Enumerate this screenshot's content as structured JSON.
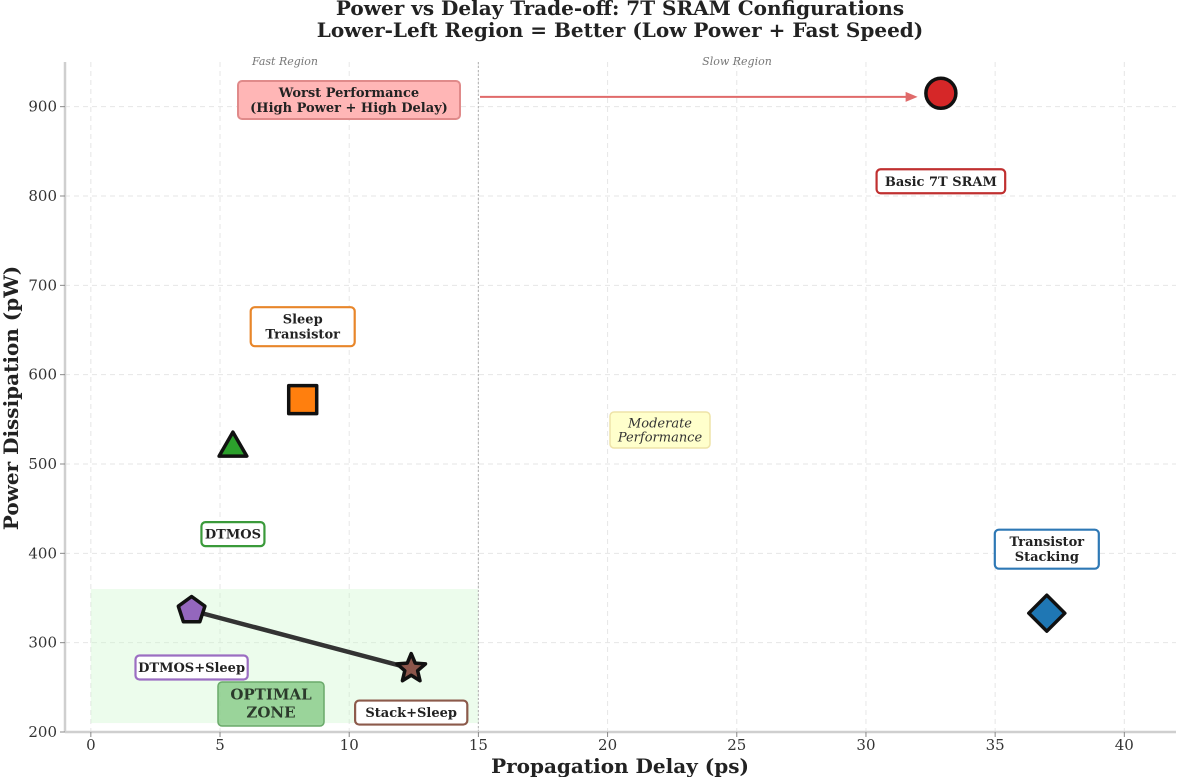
{
  "chart_data": {
    "type": "scatter",
    "title": "Power vs Delay Trade-off: 7T SRAM Configurations",
    "subtitle": "Lower-Left Region = Better (Low Power + Fast Speed)",
    "xlabel": "Propagation Delay (ps)",
    "ylabel": "Power Dissipation (pW)",
    "xlim": [
      -1,
      42
    ],
    "ylim": [
      200,
      950
    ],
    "xticks": [
      0,
      5,
      10,
      15,
      20,
      25,
      30,
      35,
      40
    ],
    "yticks": [
      200,
      300,
      400,
      500,
      600,
      700,
      800,
      900
    ],
    "grid": true,
    "divider_x": 15,
    "regions": {
      "fast": "Fast Region",
      "slow": "Slow Region"
    },
    "optimal_zone": {
      "label": "OPTIMAL\nZONE",
      "x": [
        0,
        15
      ],
      "y": [
        210,
        360
      ]
    },
    "points": [
      {
        "name": "Basic 7T SRAM",
        "label": "Basic 7T SRAM",
        "x": 32.9,
        "y": 915,
        "marker": "circle",
        "color": "#d62728",
        "border": "#c03030"
      },
      {
        "name": "Sleep Transistor",
        "label": "Sleep\nTransistor",
        "x": 8.2,
        "y": 572,
        "marker": "square",
        "color": "#ff7f0e",
        "border": "#e8862a"
      },
      {
        "name": "DTMOS",
        "label": "DTMOS",
        "x": 5.5,
        "y": 520,
        "marker": "triangle",
        "color": "#2ca02c",
        "border": "#3a9a3a"
      },
      {
        "name": "Transistor Stacking",
        "label": "Transistor\nStacking",
        "x": 37.0,
        "y": 333,
        "marker": "diamond",
        "color": "#1f77b4",
        "border": "#2e78b5"
      },
      {
        "name": "DTMOS+Sleep",
        "label": "DTMOS+Sleep",
        "x": 3.9,
        "y": 336,
        "marker": "pentagon",
        "color": "#9467bd",
        "border": "#9b6ec2"
      },
      {
        "name": "Stack+Sleep",
        "label": "Stack+Sleep",
        "x": 12.4,
        "y": 271,
        "marker": "star",
        "color": "#8c564b",
        "border": "#8c5a4b"
      }
    ],
    "pareto_line": [
      [
        3.9,
        336
      ],
      [
        12.4,
        271
      ]
    ],
    "annotations": [
      {
        "text": "Worst Performance\n(High Power + High Delay)",
        "x": 10,
        "y": 911,
        "arrow_to": [
          32,
          911
        ]
      },
      {
        "text": "Moderate\nPerformance",
        "x": 22,
        "y": 540
      }
    ]
  }
}
